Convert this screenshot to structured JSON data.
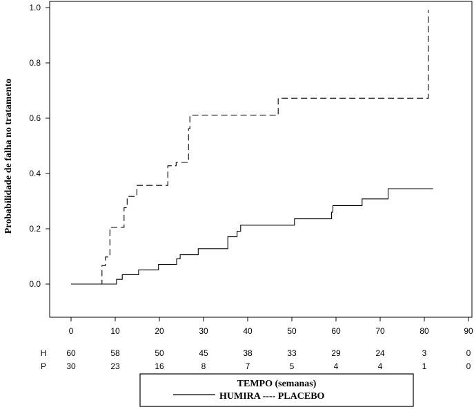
{
  "chart_data": {
    "type": "line",
    "chart_subtype": "kaplan-meier step",
    "ylabel": "Probabilidade de falha no tratamento",
    "xlabel": "TEMPO (semanas)",
    "legend_line": "HUMIRA ---- PLACEBO",
    "xlim": [
      -5,
      90
    ],
    "ylim": [
      -0.12,
      1.02
    ],
    "x_ticks": [
      0,
      10,
      20,
      30,
      40,
      50,
      60,
      70,
      80,
      90
    ],
    "y_ticks": [
      0.0,
      0.2,
      0.4,
      0.6,
      0.8,
      1.0
    ],
    "y_tick_labels": [
      "0.0",
      "0.2",
      "0.4",
      "0.6",
      "0.8",
      "1.0"
    ],
    "grid": false,
    "series": [
      {
        "name": "HUMIRA",
        "style": "solid",
        "color": "#000000",
        "x": [
          0,
          10.3,
          11.6,
          15.3,
          19.8,
          23.9,
          24.7,
          28.8,
          35.5,
          37.6,
          38.4,
          50.6,
          59,
          59.3,
          65.9,
          71.8,
          82
        ],
        "y": [
          0.0,
          0.017,
          0.034,
          0.051,
          0.071,
          0.091,
          0.106,
          0.128,
          0.171,
          0.191,
          0.213,
          0.236,
          0.26,
          0.284,
          0.308,
          0.345,
          0.345
        ]
      },
      {
        "name": "PLACEBO",
        "style": "dashed",
        "color": "#000000",
        "x": [
          0,
          7,
          7.8,
          8.8,
          12,
          12.7,
          14.9,
          21.9,
          23.8,
          26.6,
          26.9,
          46.9,
          80.9
        ],
        "y": [
          0.0,
          0.067,
          0.098,
          0.205,
          0.276,
          0.317,
          0.357,
          0.428,
          0.44,
          0.562,
          0.611,
          0.672,
          0.992
        ]
      }
    ],
    "risk_table": {
      "times": [
        0,
        10,
        20,
        30,
        40,
        50,
        60,
        70,
        80,
        90
      ],
      "rows": [
        {
          "label": "H",
          "values": [
            60,
            58,
            50,
            45,
            38,
            33,
            29,
            24,
            3,
            0
          ]
        },
        {
          "label": "P",
          "values": [
            30,
            23,
            16,
            8,
            7,
            5,
            4,
            4,
            1,
            0
          ]
        }
      ]
    }
  }
}
